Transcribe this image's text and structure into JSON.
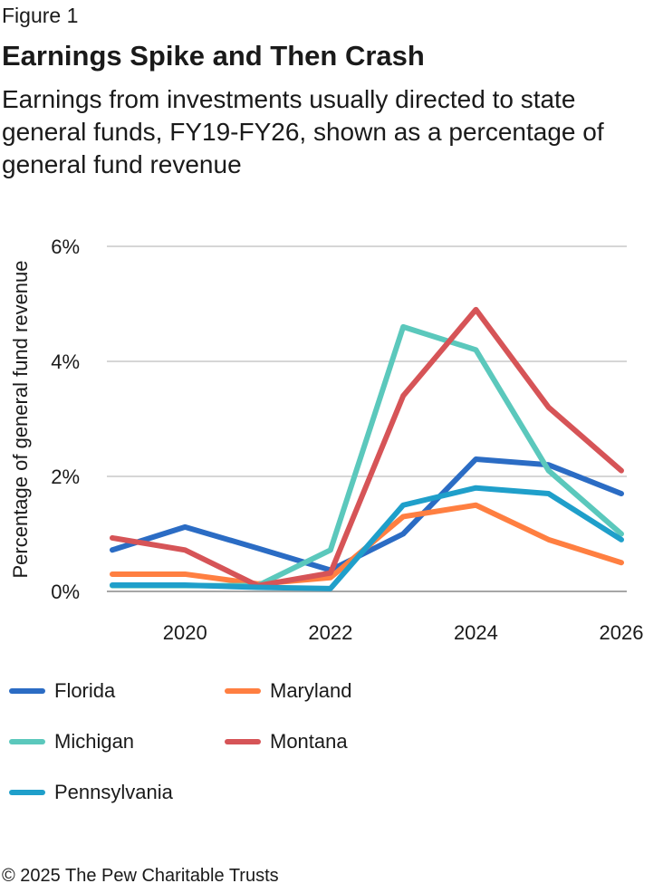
{
  "figure_label": "Figure 1",
  "copyright": "© 2025 The Pew Charitable Trusts",
  "chart_data": {
    "type": "line",
    "title": "Earnings Spike and Then Crash",
    "subtitle": "Earnings from investments usually directed to state general funds, FY19-FY26, shown as a percentage of general fund revenue",
    "xlabel": "",
    "ylabel": "Percentage of general fund revenue",
    "x": [
      2019,
      2020,
      2021,
      2022,
      2023,
      2024,
      2025,
      2026
    ],
    "xticks": [
      "2020",
      "2022",
      "2024",
      "2026"
    ],
    "yticks": [
      "0%",
      "2%",
      "4%",
      "6%"
    ],
    "ylim": [
      0,
      6
    ],
    "grid": true,
    "legend": "bottom",
    "series": [
      {
        "name": "Florida",
        "color": "#2b6cc4",
        "values": [
          0.72,
          1.12,
          0.75,
          0.37,
          1.0,
          2.3,
          2.2,
          1.7
        ]
      },
      {
        "name": "Maryland",
        "color": "#ff7f41",
        "values": [
          0.3,
          0.3,
          0.13,
          0.24,
          1.3,
          1.5,
          0.9,
          0.5
        ]
      },
      {
        "name": "Michigan",
        "color": "#5bc8bc",
        "values": [
          0.1,
          0.1,
          0.1,
          0.72,
          4.6,
          4.2,
          2.1,
          1.0
        ]
      },
      {
        "name": "Montana",
        "color": "#d65457",
        "values": [
          0.93,
          0.72,
          0.1,
          0.32,
          3.4,
          4.9,
          3.2,
          2.1
        ]
      },
      {
        "name": "Pennsylvania",
        "color": "#1f9fca",
        "values": [
          0.11,
          0.11,
          0.07,
          0.05,
          1.5,
          1.8,
          1.7,
          0.9
        ]
      }
    ]
  }
}
